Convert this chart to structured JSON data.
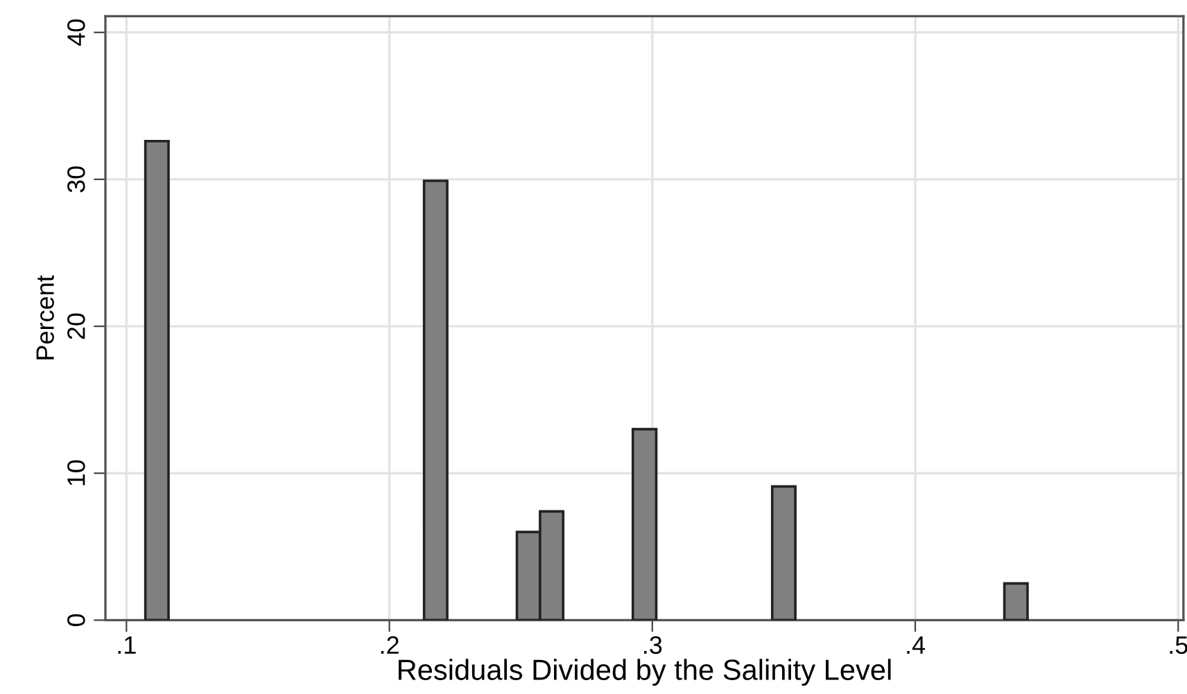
{
  "chart_data": {
    "type": "histogram",
    "xlabel": "Residuals Divided by the Salinity Level",
    "ylabel": "Percent",
    "bins": [
      0.1072,
      0.116,
      0.1249,
      0.1337,
      0.1425,
      0.1514,
      0.1602,
      0.169,
      0.1778,
      0.1867,
      0.1955,
      0.2043,
      0.2132,
      0.222,
      0.2308,
      0.2397,
      0.2485,
      0.2573,
      0.2661,
      0.275,
      0.2838,
      0.2926,
      0.3015,
      0.3103,
      0.3191,
      0.328,
      0.3368,
      0.3456,
      0.3544,
      0.3633,
      0.3721,
      0.3809,
      0.3898,
      0.3986,
      0.4074,
      0.4162,
      0.4251,
      0.4339,
      0.4427
    ],
    "values": [
      32.6,
      0,
      0,
      0,
      0,
      0,
      0,
      0,
      0,
      0,
      0,
      0,
      29.9,
      0,
      0,
      0,
      6.0,
      7.4,
      0,
      0,
      0,
      13.0,
      0,
      0,
      0,
      0,
      0,
      9.1,
      0,
      0,
      0,
      0,
      0,
      0,
      0,
      0,
      0,
      2.5
    ],
    "color": "#808080",
    "xlim": [
      0.092,
      0.502
    ],
    "ylim": [
      0,
      41.1
    ],
    "xticks": [
      {
        "value": 0.1,
        "label": ".1"
      },
      {
        "value": 0.2,
        "label": ".2"
      },
      {
        "value": 0.3,
        "label": ".3"
      },
      {
        "value": 0.4,
        "label": ".4"
      },
      {
        "value": 0.5,
        "label": ".5"
      }
    ],
    "yticks": [
      0,
      10,
      20,
      30,
      40
    ],
    "grid": true
  }
}
